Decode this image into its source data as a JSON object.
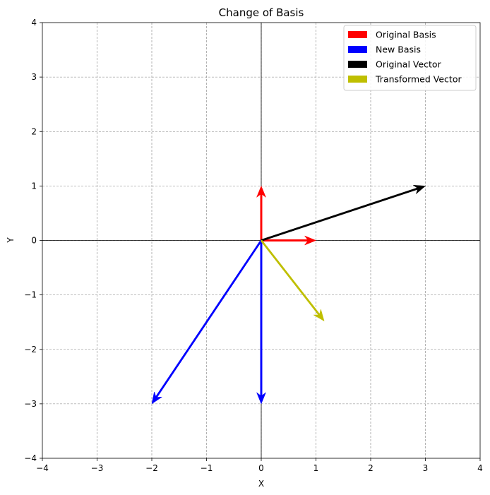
{
  "chart_data": {
    "type": "quiver",
    "title": "Change of Basis",
    "xlabel": "X",
    "ylabel": "Y",
    "xlim": [
      -4,
      4
    ],
    "ylim": [
      -4,
      4
    ],
    "xticks": [
      -4,
      -3,
      -2,
      -1,
      0,
      1,
      2,
      3,
      4
    ],
    "yticks": [
      -4,
      -3,
      -2,
      -1,
      0,
      1,
      2,
      3,
      4
    ],
    "grid": true,
    "legend_position": "top-right",
    "series": [
      {
        "name": "Original Basis",
        "color": "#ff0000",
        "vectors": [
          {
            "x0": 0,
            "y0": 0,
            "dx": 1,
            "dy": 0
          },
          {
            "x0": 0,
            "y0": 0,
            "dx": 0,
            "dy": 1
          }
        ]
      },
      {
        "name": "New Basis",
        "color": "#0000ff",
        "vectors": [
          {
            "x0": 0,
            "y0": 0,
            "dx": -2,
            "dy": -3
          },
          {
            "x0": 0,
            "y0": 0,
            "dx": 0,
            "dy": -3
          }
        ]
      },
      {
        "name": "Original Vector",
        "color": "#000000",
        "vectors": [
          {
            "x0": 0,
            "y0": 0,
            "dx": 3,
            "dy": 1
          }
        ]
      },
      {
        "name": "Transformed Vector",
        "color": "#bfbf00",
        "vectors": [
          {
            "x0": 0,
            "y0": 0,
            "dx": 1.15,
            "dy": -1.48
          }
        ]
      }
    ]
  }
}
